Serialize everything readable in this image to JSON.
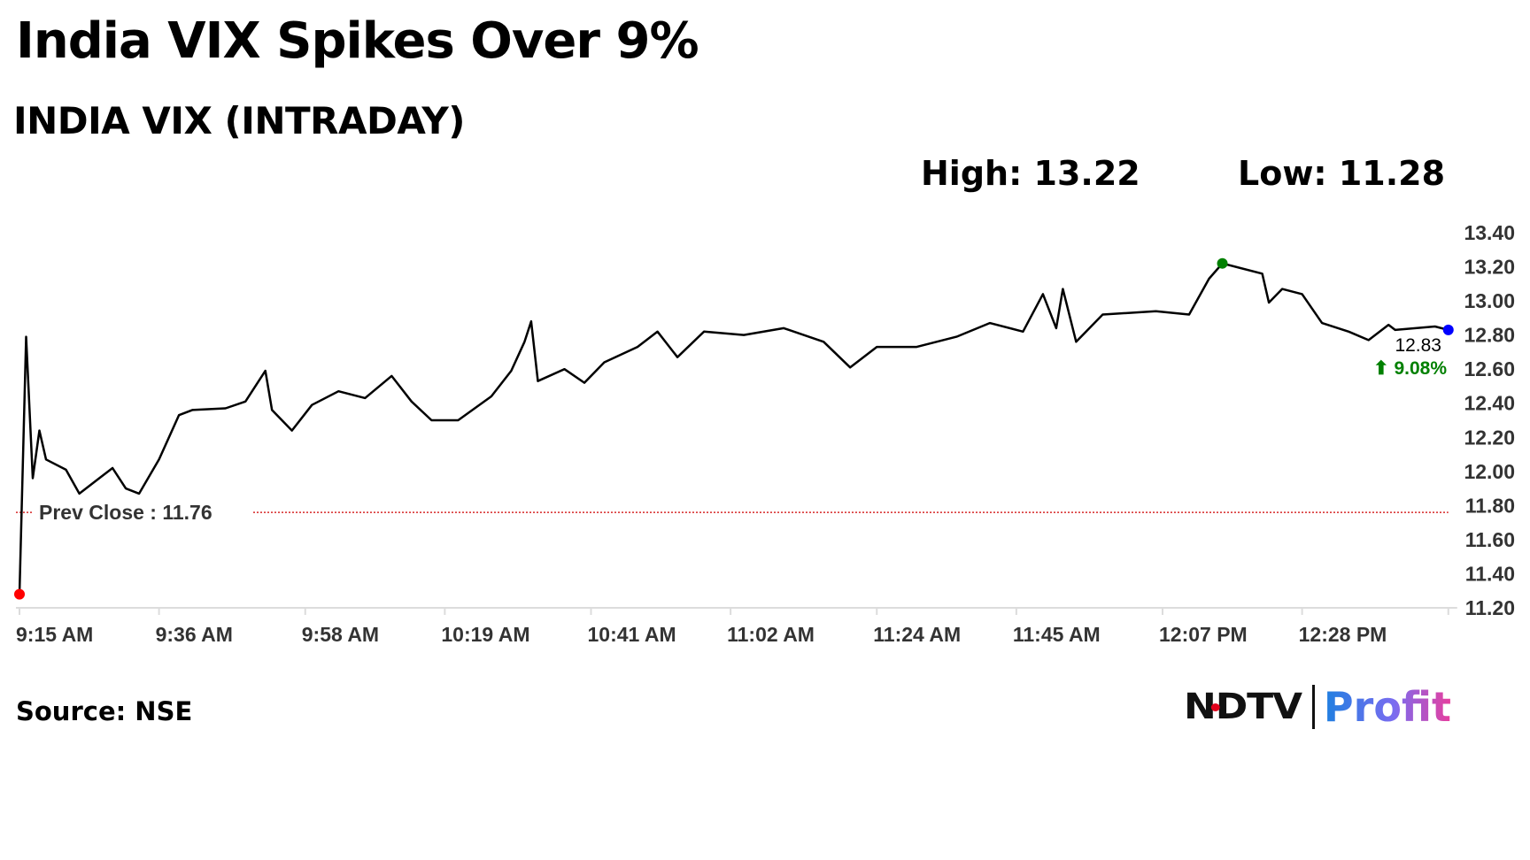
{
  "header": {
    "title": "India VIX Spikes Over 9%",
    "subtitle": "INDIA VIX (INTRADAY)",
    "high_label": "High: 13.22",
    "low_label": "Low: 11.28"
  },
  "footer": {
    "source": "Source: NSE",
    "logo_text": "NDTV | Profit"
  },
  "colors": {
    "line": "#000000",
    "prev_close": "#d62728",
    "low_marker": "#ff0000",
    "high_marker": "#008000",
    "last_marker": "#0000ff",
    "change_positive": "#008000",
    "axis_text": "#333333"
  },
  "chart_data": {
    "type": "line",
    "title": "INDIA VIX (INTRADAY)",
    "xlabel": "",
    "ylabel": "",
    "ylim": [
      11.2,
      13.4
    ],
    "y_ticks": [
      "13.40",
      "13.20",
      "13.00",
      "12.80",
      "12.60",
      "12.40",
      "12.20",
      "12.00",
      "11.80",
      "11.60",
      "11.40",
      "11.20"
    ],
    "x_ticks": [
      "9:15 AM",
      "9:36 AM",
      "9:58 AM",
      "10:19 AM",
      "10:41 AM",
      "11:02 AM",
      "11:24 AM",
      "11:45 AM",
      "12:07 PM",
      "12:28 PM"
    ],
    "x_tick_times": [
      "9:15",
      "9:36",
      "9:58",
      "10:19",
      "10:41",
      "11:02",
      "11:24",
      "11:45",
      "12:07",
      "12:28"
    ],
    "axis_position": "right",
    "grid": false,
    "prev_close": {
      "label": "Prev Close : 11.76",
      "value": 11.76
    },
    "high": {
      "time": "12:16",
      "value": 13.22
    },
    "low": {
      "time": "9:15",
      "value": 11.28
    },
    "last": {
      "time": "12:50",
      "value": 12.83,
      "value_label": "12.83",
      "change_label": "⬆ 9.08%"
    },
    "series": [
      {
        "time": [
          "9:15",
          "9:16",
          "9:17",
          "9:18",
          "9:19",
          "9:22",
          "9:24",
          "9:27",
          "9:29",
          "9:31",
          "9:33",
          "9:36",
          "9:39",
          "9:41",
          "9:46",
          "9:49",
          "9:52",
          "9:53",
          "9:56",
          "9:59",
          "10:03",
          "10:07",
          "10:11",
          "10:14",
          "10:17",
          "10:21",
          "10:26",
          "10:29",
          "10:31",
          "10:32",
          "10:33",
          "10:37",
          "10:40",
          "10:43",
          "10:48",
          "10:51",
          "10:54",
          "10:58",
          "11:04",
          "11:10",
          "11:16",
          "11:20",
          "11:24",
          "11:30",
          "11:36",
          "11:41",
          "11:46",
          "11:49",
          "11:51",
          "11:52",
          "11:54",
          "11:58",
          "12:06",
          "12:11",
          "12:14",
          "12:16",
          "12:22",
          "12:23",
          "12:25",
          "12:28",
          "12:31",
          "12:35",
          "12:38",
          "12:41",
          "12:42",
          "12:48",
          "12:50"
        ],
        "values": [
          11.28,
          12.79,
          11.96,
          12.24,
          12.07,
          12.01,
          11.87,
          11.96,
          12.02,
          11.9,
          11.87,
          12.07,
          12.33,
          12.36,
          12.37,
          12.41,
          12.59,
          12.36,
          12.24,
          12.39,
          12.47,
          12.43,
          12.56,
          12.41,
          12.3,
          12.3,
          12.44,
          12.59,
          12.76,
          12.88,
          12.53,
          12.6,
          12.52,
          12.64,
          12.73,
          12.82,
          12.67,
          12.82,
          12.8,
          12.84,
          12.76,
          12.61,
          12.73,
          12.73,
          12.79,
          12.87,
          12.82,
          13.04,
          12.84,
          13.07,
          12.76,
          12.92,
          12.94,
          12.92,
          13.13,
          13.22,
          13.16,
          12.99,
          13.07,
          13.04,
          12.87,
          12.82,
          12.77,
          12.86,
          12.83,
          12.85,
          12.83
        ]
      }
    ]
  }
}
